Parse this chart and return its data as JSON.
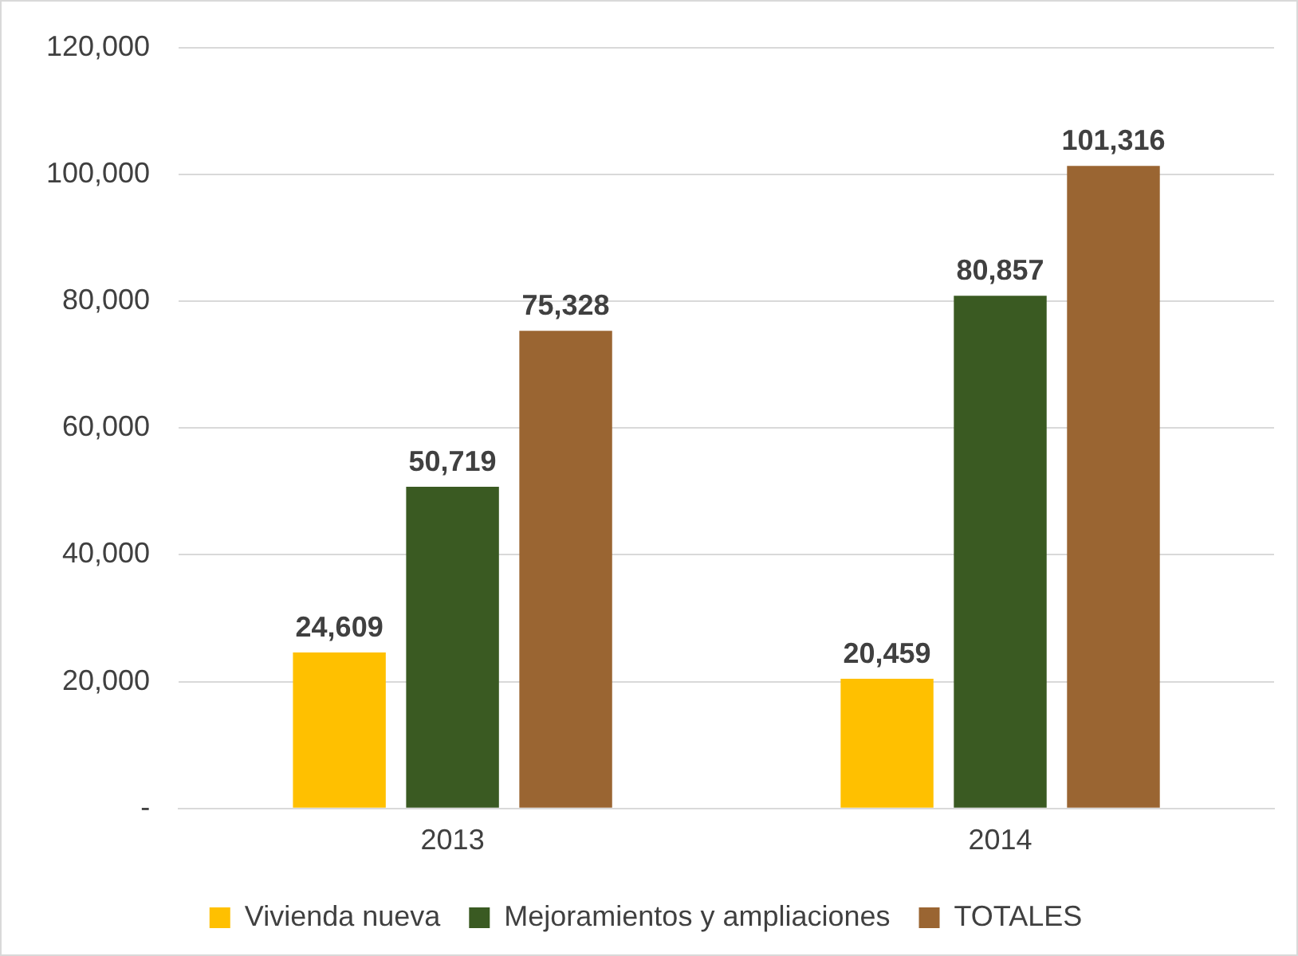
{
  "chart_data": {
    "type": "bar",
    "categories": [
      "2013",
      "2014"
    ],
    "series": [
      {
        "name": "Vivienda nueva",
        "color": "#ffc000",
        "values": [
          24609,
          20459
        ],
        "value_labels": [
          "24,609",
          "20,459"
        ]
      },
      {
        "name": "Mejoramientos y ampliaciones",
        "color": "#3a5a22",
        "values": [
          50719,
          80857
        ],
        "value_labels": [
          "50,719",
          "80,857"
        ]
      },
      {
        "name": "TOTALES",
        "color": "#9a6532",
        "values": [
          75328,
          101316
        ],
        "value_labels": [
          "75,328",
          "101,316"
        ]
      }
    ],
    "ylim": [
      0,
      120000
    ],
    "yticks": [
      {
        "value": 0,
        "label": "-"
      },
      {
        "value": 20000,
        "label": "20,000"
      },
      {
        "value": 40000,
        "label": "40,000"
      },
      {
        "value": 60000,
        "label": "60,000"
      },
      {
        "value": 80000,
        "label": "80,000"
      },
      {
        "value": 100000,
        "label": "100,000"
      },
      {
        "value": 120000,
        "label": "120,000"
      }
    ],
    "grid": "y",
    "legend": "bottom"
  }
}
